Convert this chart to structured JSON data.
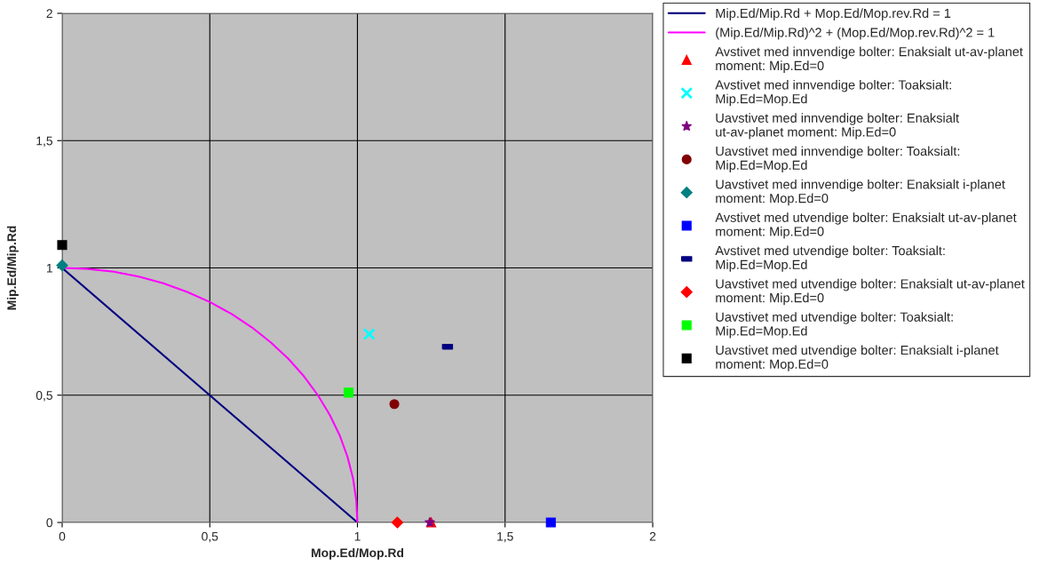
{
  "chart_data": {
    "type": "scatter",
    "xlabel": "Mop.Ed/Mop.Rd",
    "ylabel": "Mip.Ed/Mip.Rd",
    "xlim": [
      0,
      2
    ],
    "ylim": [
      0,
      2
    ],
    "xticks": [
      0,
      {
        "value": 0.5,
        "label": "0,5"
      },
      1,
      {
        "value": 1.5,
        "label": "1,5"
      },
      2
    ],
    "yticks": [
      0,
      {
        "value": 0.5,
        "label": "0,5"
      },
      1,
      {
        "value": 1.5,
        "label": "1,5"
      },
      2
    ],
    "grid": true,
    "legend": "right",
    "series": [
      {
        "name": "Mip.Ed/Mip.Rd + Mop.Ed/Mop.rev.Rd = 1",
        "type": "line",
        "color": "#000080",
        "marker": "none",
        "x": [
          0,
          1
        ],
        "values": [
          1,
          0
        ]
      },
      {
        "name": "(Mip.Ed/Mip.Rd)^2 + (Mop.Ed/Mop.rev.Rd)^2 = 1",
        "type": "line",
        "color": "#ff00ff",
        "marker": "none",
        "x": [
          0,
          0.087,
          0.174,
          0.259,
          0.342,
          0.423,
          0.5,
          0.574,
          0.643,
          0.707,
          0.766,
          0.819,
          0.866,
          0.906,
          0.94,
          0.966,
          0.985,
          0.996,
          1
        ],
        "values": [
          1,
          0.996,
          0.985,
          0.966,
          0.94,
          0.906,
          0.866,
          0.819,
          0.766,
          0.707,
          0.643,
          0.574,
          0.5,
          0.423,
          0.342,
          0.259,
          0.174,
          0.087,
          0
        ]
      },
      {
        "name": "Avstivet med innvendige bolter: Enaksialt ut-av-planet moment: Mip.Ed=0",
        "color": "#ff0000",
        "marker": "triangle",
        "x": [
          1.25
        ],
        "values": [
          0
        ]
      },
      {
        "name": "Avstivet med innvendige bolter: Toaksialt: Mip.Ed=Mop.Ed",
        "color": "#00ffff",
        "marker": "cross",
        "x": [
          1.04
        ],
        "values": [
          0.74
        ]
      },
      {
        "name": "Uavstivet med innvendige bolter: Enaksialt ut-av-planet moment: Mip.Ed=0",
        "color": "#800080",
        "marker": "star",
        "x": [
          1.245
        ],
        "values": [
          0
        ]
      },
      {
        "name": "Uavstivet med innvendige bolter: Toaksialt: Mip.Ed=Mop.Ed",
        "color": "#800000",
        "marker": "circle",
        "x": [
          1.125
        ],
        "values": [
          0.465
        ]
      },
      {
        "name": "Uavstivet med innvendige bolter: Enaksialt i-planet moment: Mop.Ed=0",
        "color": "#008080",
        "marker": "diamond",
        "x": [
          0
        ],
        "values": [
          1.01
        ]
      },
      {
        "name": "Avstivet med utvendige bolter: Enaksialt ut-av-planet moment: Mip.Ed=0",
        "color": "#0000ff",
        "marker": "square",
        "x": [
          1.655
        ],
        "values": [
          0
        ]
      },
      {
        "name": "Avstivet med utvendige bolter: Toaksialt: Mip.Ed=Mop.Ed",
        "color": "#000080",
        "x": [
          1.305
        ],
        "values": [
          0.69
        ]
      },
      {
        "name": "Uavstivet med utvendige bolter: Enaksialt ut-av-planet moment: Mip.Ed=0",
        "color": "#ff0000",
        "marker": "diamond",
        "x": [
          1.135
        ],
        "values": [
          0
        ]
      },
      {
        "name": "Uavstivet med utvendige bolter: Toaksialt: Mip.Ed=Mop.Ed",
        "color": "#00ff00",
        "marker": "square",
        "x": [
          0.97
        ],
        "values": [
          0.51
        ]
      },
      {
        "name": "Uavstivet med utvendige bolter: Enaksialt i-planet moment: Mop.Ed=0",
        "color": "#000000",
        "marker": "square",
        "x": [
          0
        ],
        "values": [
          1.09
        ]
      }
    ]
  }
}
